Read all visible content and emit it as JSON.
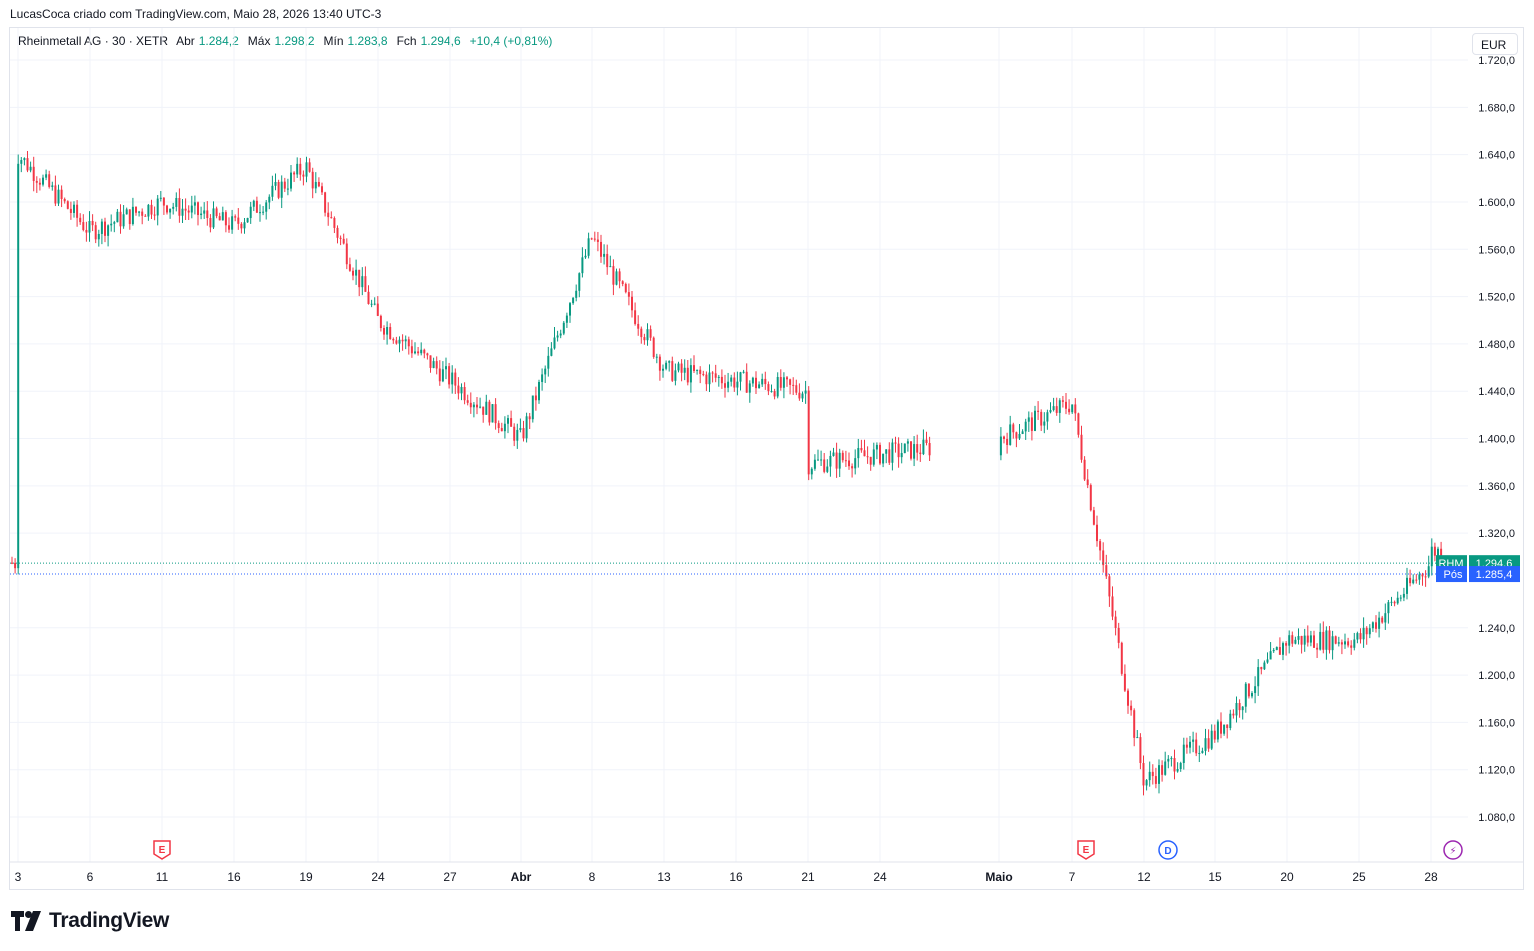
{
  "header": {
    "author_line": "LucasCoca criado com TradingView.com, Maio 28, 2026 13:40 UTC-3"
  },
  "legend": {
    "symbol": "Rheinmetall AG · 30 · XETR",
    "open_label": "Abr",
    "open_value": "1.284,2",
    "high_label": "Máx",
    "high_value": "1.298,2",
    "low_label": "Mín",
    "low_value": "1.283,8",
    "close_label": "Fch",
    "close_value": "1.294,6",
    "change": "+10,4 (+0,81%)"
  },
  "currency": "EUR",
  "colors": {
    "up": "#089981",
    "down": "#f23645",
    "position": "#2962ff",
    "grid": "#f0f3fa"
  },
  "badges": {
    "price_tag": "RHM",
    "price_value": "1.294,6",
    "pos_tag": "Pós",
    "pos_value": "1.285,4"
  },
  "events": [
    {
      "type": "earnings",
      "glyph": "E",
      "date": "11"
    },
    {
      "type": "earnings",
      "glyph": "E",
      "date": "7"
    },
    {
      "type": "dividend",
      "glyph": "D",
      "date": "12"
    },
    {
      "type": "split",
      "glyph": "⚡",
      "date": "28"
    }
  ],
  "brand": "TradingView",
  "chart_data": {
    "type": "candlestick",
    "title": "Rheinmetall AG · 30 · XETR",
    "currency": "EUR",
    "y_ticks": [
      1080,
      1120,
      1160,
      1200,
      1240,
      1320,
      1360,
      1400,
      1440,
      1480,
      1520,
      1560,
      1600,
      1640,
      1680,
      1720
    ],
    "y_tick_labels": [
      "1.080,0",
      "1.120,0",
      "1.160,0",
      "1.200,0",
      "1.240,0",
      "1.320,0",
      "1.360,0",
      "1.400,0",
      "1.440,0",
      "1.480,0",
      "1.520,0",
      "1.560,0",
      "1.600,0",
      "1.640,0",
      "1.680,0",
      "1.720,0"
    ],
    "x_ticks": [
      "3",
      "6",
      "11",
      "16",
      "19",
      "24",
      "27",
      "Abr",
      "8",
      "13",
      "16",
      "21",
      "24",
      "Maio",
      "7",
      "12",
      "15",
      "20",
      "25",
      "28"
    ],
    "bold_x_ticks": [
      "Abr",
      "Maio"
    ],
    "grid": true,
    "last_price": 1294.6,
    "position_price": 1285.4,
    "path_x": [
      "3",
      "6",
      "11",
      "16",
      "19",
      "24",
      "27",
      "Abr",
      "8",
      "13",
      "16",
      "21",
      "24",
      "Maio",
      "7",
      "12",
      "15",
      "20",
      "25",
      "28"
    ],
    "path_close_approx": [
      1640,
      1575,
      1600,
      1580,
      1630,
      1500,
      1450,
      1400,
      1570,
      1460,
      1510,
      1440,
      1330,
      1400,
      1430,
      1110,
      1150,
      1230,
      1230,
      1295
    ]
  }
}
